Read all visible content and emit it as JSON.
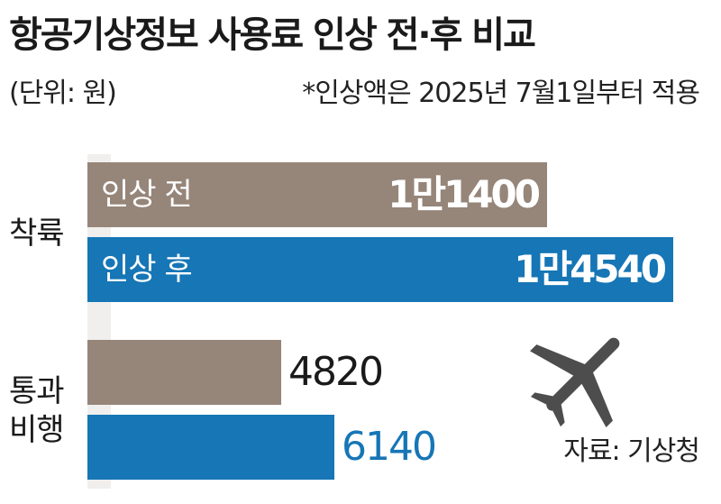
{
  "title": "항공기상정보 사용료 인상 전·후 비교",
  "unit_note": "(단위: 원)",
  "footnote": "*인상액은 2025년 7월1일부터 적용",
  "source": "자료: 기상청",
  "colors": {
    "before": "#968579",
    "after": "#1676b6",
    "label_dark": "#1a1a1a"
  },
  "icons": {
    "plane": "airplane-icon"
  },
  "chart_data": {
    "type": "bar",
    "orientation": "horizontal",
    "categories": [
      "착륙",
      "통과 비행"
    ],
    "series": [
      {
        "name": "인상 전",
        "values": [
          11400,
          4820
        ],
        "display": [
          "1만1400",
          "4820"
        ],
        "color": "#968579"
      },
      {
        "name": "인상 후",
        "values": [
          14540,
          6140
        ],
        "display": [
          "1만4540",
          "6140"
        ],
        "color": "#1676b6"
      }
    ],
    "title": "항공기상정보 사용료 인상 전·후 비교",
    "xlabel": "",
    "ylabel": "",
    "xlim": [
      0,
      14540
    ],
    "grid": false,
    "legend": "none"
  }
}
